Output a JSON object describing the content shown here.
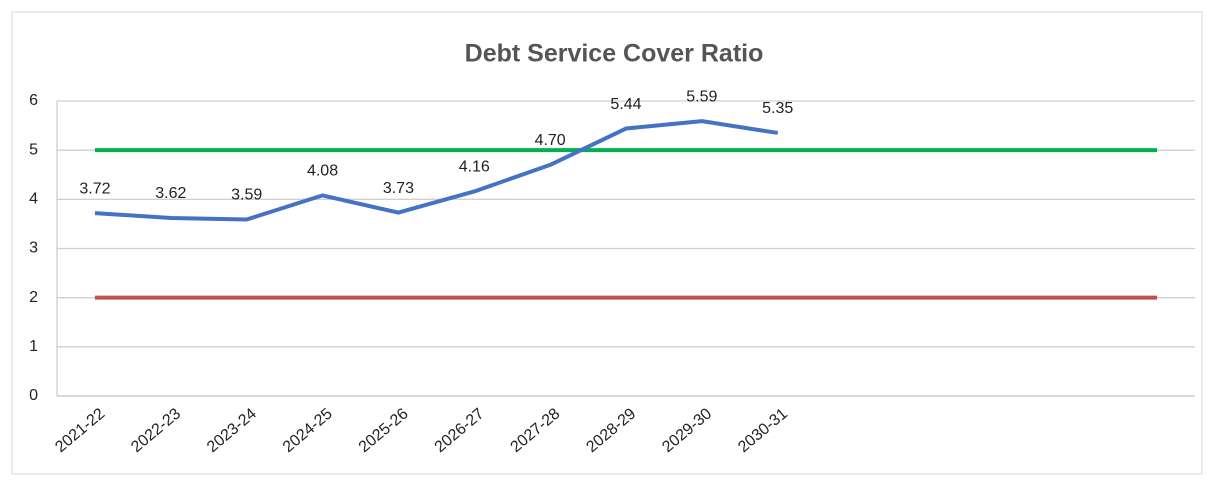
{
  "chart_data": {
    "type": "line",
    "title": "Debt Service Cover Ratio",
    "categories": [
      "2021-22",
      "2022-23",
      "2023-24",
      "2024-25",
      "2025-26",
      "2026-27",
      "2027-28",
      "2028-29",
      "2029-30",
      "2030-31",
      null,
      null,
      null,
      null,
      null
    ],
    "series": [
      {
        "color": "#4472c4",
        "values": [
          3.72,
          3.62,
          3.59,
          4.08,
          3.73,
          4.16,
          4.7,
          5.44,
          5.59,
          5.35,
          null,
          null,
          null,
          null,
          null
        ],
        "value_labels": [
          "3.72",
          "3.62",
          "3.59",
          "4.08",
          "3.73",
          "4.16",
          "4.70",
          "5.44",
          "5.59",
          "5.35",
          null,
          null,
          null,
          null,
          null
        ]
      },
      {
        "color": "#00b050",
        "values": [
          5,
          5,
          5,
          5,
          5,
          5,
          5,
          5,
          5,
          5,
          5,
          5,
          5,
          5,
          5
        ]
      },
      {
        "color": "#c0504d",
        "values": [
          2,
          2,
          2,
          2,
          2,
          2,
          2,
          2,
          2,
          2,
          2,
          2,
          2,
          2,
          2
        ]
      }
    ],
    "ylim": [
      0,
      6
    ],
    "yticks": [
      0,
      1,
      2,
      3,
      4,
      5,
      6
    ],
    "grid": true
  }
}
